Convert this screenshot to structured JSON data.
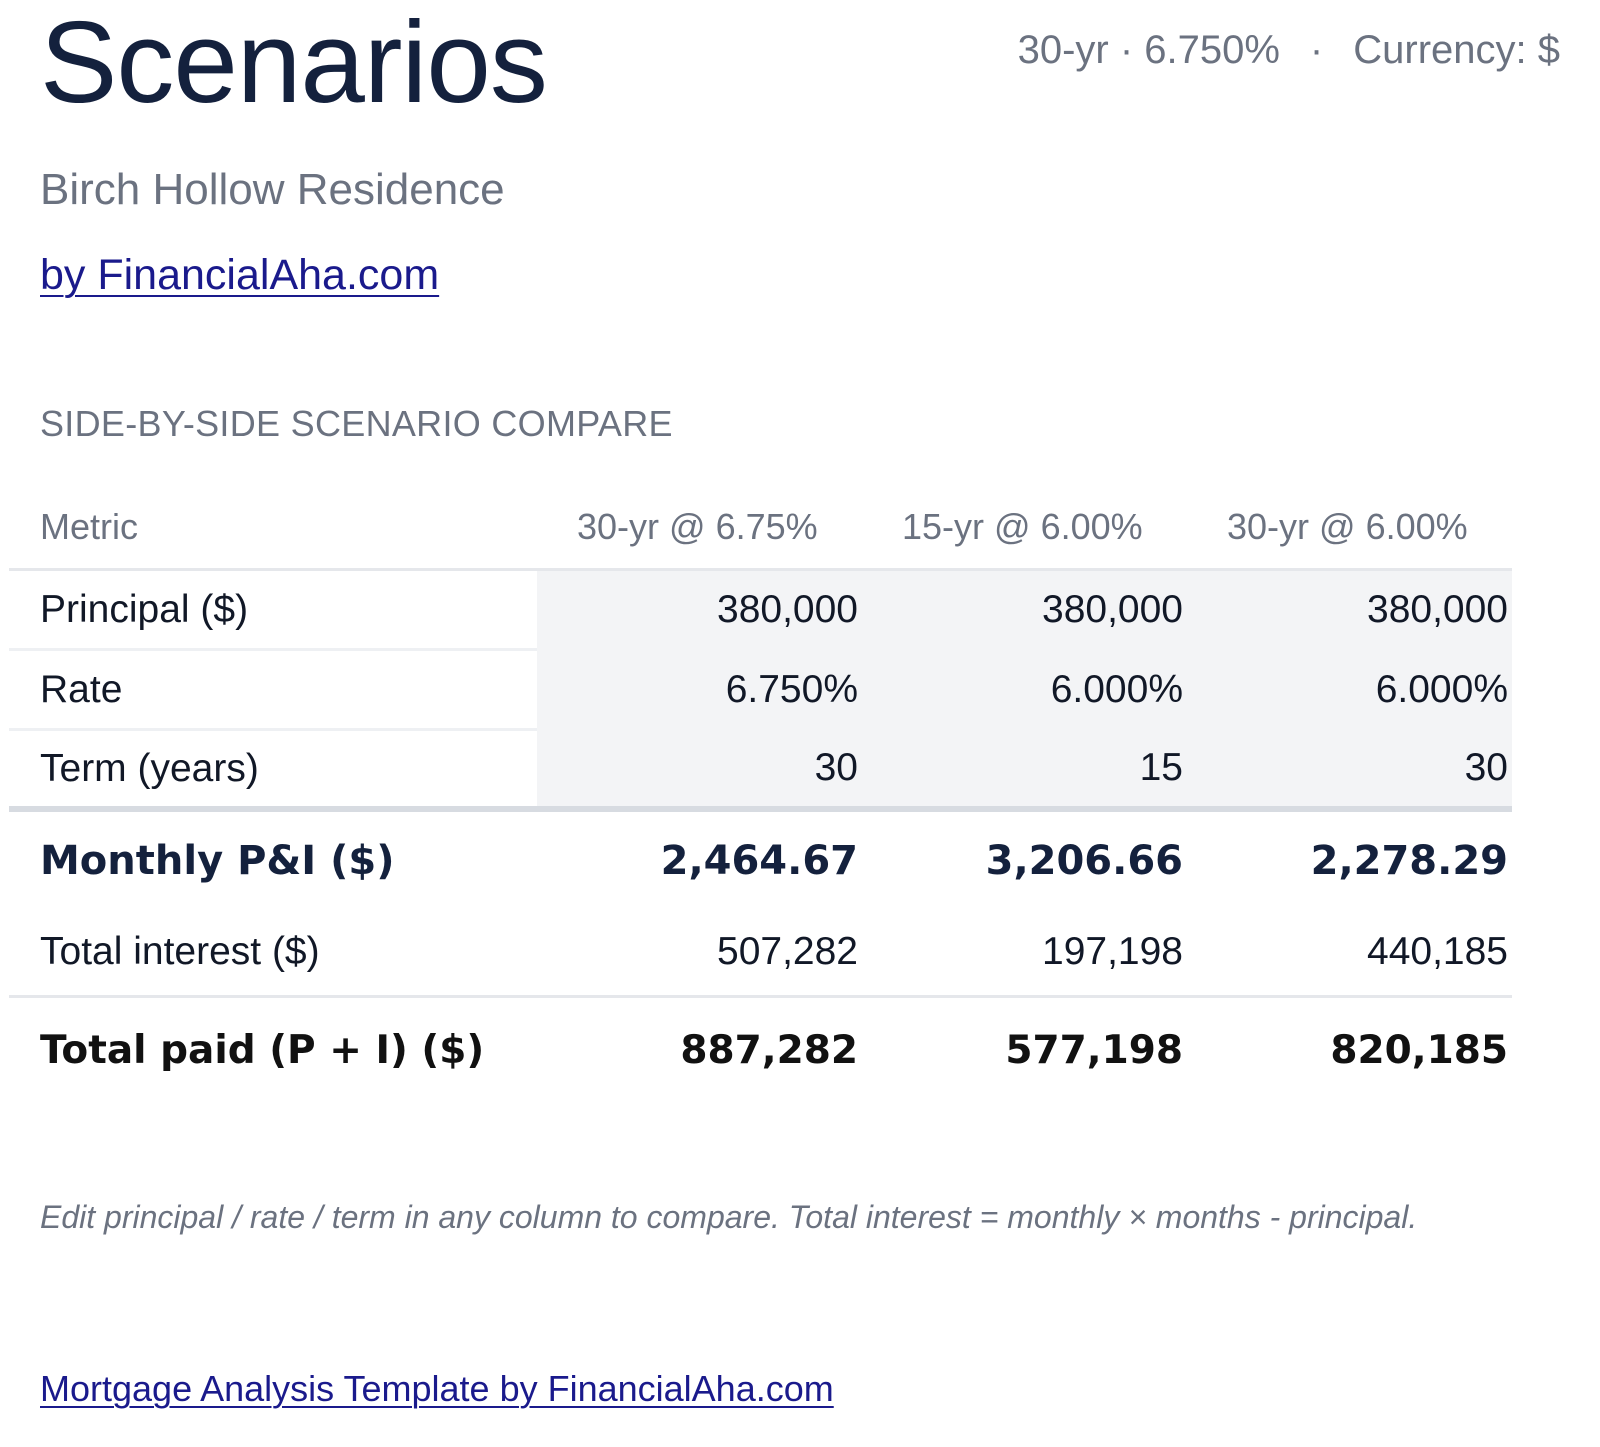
{
  "header": {
    "title": "Scenarios",
    "meta_term_rate": "30-yr · 6.750%",
    "meta_separator": "·",
    "meta_currency": "Currency: $"
  },
  "property": {
    "name": "Birch Hollow Residence"
  },
  "byline": {
    "label": "by FinancialAha.com"
  },
  "section": {
    "title": "SIDE-BY-SIDE SCENARIO COMPARE"
  },
  "table": {
    "headers": [
      "Metric",
      "30-yr @ 6.75%",
      "15-yr @ 6.00%",
      "30-yr @ 6.00%"
    ],
    "rows": [
      {
        "label": "Principal ($)",
        "values": [
          "380,000",
          "380,000",
          "380,000"
        ]
      },
      {
        "label": "Rate",
        "values": [
          "6.750%",
          "6.000%",
          "6.000%"
        ]
      },
      {
        "label": "Term (years)",
        "values": [
          "30",
          "15",
          "30"
        ]
      },
      {
        "label": "Monthly P&I ($)",
        "values": [
          "2,464.67",
          "3,206.66",
          "2,278.29"
        ]
      },
      {
        "label": "Total interest ($)",
        "values": [
          "507,282",
          "197,198",
          "440,185"
        ]
      },
      {
        "label": "Total paid (P + I) ($)",
        "values": [
          "887,282",
          "577,198",
          "820,185"
        ]
      }
    ]
  },
  "note": {
    "text": "Edit principal / rate / term in any column to compare. Total interest = monthly × months - principal."
  },
  "footer": {
    "link_label": "Mortgage Analysis Template by FinancialAha.com"
  },
  "colors": {
    "title": "#14213d",
    "muted_text": "#6b7280",
    "link": "#1a1a8c",
    "input_cell_bg": "#f3f4f6",
    "divider": "#e5e7eb"
  }
}
